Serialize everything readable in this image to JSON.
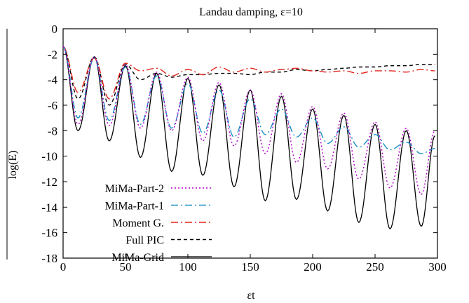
{
  "chart_data": {
    "type": "line",
    "title": "Landau damping, ε=10",
    "xlabel": "εt",
    "ylabel": "log(E)",
    "xlim": [
      0,
      300
    ],
    "ylim": [
      -18,
      0
    ],
    "xticks": [
      0,
      50,
      100,
      150,
      200,
      250,
      300
    ],
    "yticks": [
      0,
      -2,
      -4,
      -6,
      -8,
      -10,
      -12,
      -14,
      -16,
      -18
    ],
    "grid": false,
    "legend": "bottom-left",
    "colors": {
      "mima_part_2": "#b000c8",
      "mima_part_1": "#1a8fc4",
      "moment_g": "#e0241b",
      "full_pic": "#000000",
      "mima_grid": "#000000"
    },
    "series": [
      {
        "name": "MiMa-Part-2",
        "style": "dotted",
        "x": [
          0,
          12,
          25,
          37,
          50,
          62,
          75,
          87,
          100,
          112,
          125,
          137,
          150,
          162,
          175,
          187,
          200,
          212,
          225,
          237,
          250,
          262,
          275,
          287,
          298
        ],
        "values": [
          -1.4,
          -7.5,
          -2.2,
          -7.6,
          -2.8,
          -7.8,
          -3.4,
          -8.0,
          -3.8,
          -8.8,
          -4.2,
          -9.2,
          -4.8,
          -9.8,
          -5.1,
          -10.5,
          -6.1,
          -11.0,
          -6.6,
          -11.8,
          -7.3,
          -12.5,
          -7.8,
          -13.0,
          -8.0
        ]
      },
      {
        "name": "MiMa-Part-1",
        "style": "dash-dot",
        "x": [
          0,
          12,
          25,
          37,
          50,
          62,
          75,
          87,
          100,
          112,
          125,
          137,
          150,
          162,
          175,
          187,
          200,
          212,
          225,
          237,
          250,
          262,
          275,
          287,
          298
        ],
        "values": [
          -1.4,
          -7.0,
          -2.3,
          -7.2,
          -3.0,
          -7.5,
          -3.7,
          -7.8,
          -4.3,
          -8.2,
          -4.8,
          -8.5,
          -5.5,
          -8.3,
          -6.3,
          -8.5,
          -7.0,
          -9.0,
          -7.7,
          -9.3,
          -8.3,
          -9.5,
          -8.9,
          -9.8,
          -9.4
        ]
      },
      {
        "name": "Moment G.",
        "style": "dash-dot",
        "x": [
          0,
          12,
          25,
          37,
          50,
          62,
          75,
          87,
          100,
          112,
          125,
          137,
          150,
          162,
          175,
          187,
          200,
          212,
          225,
          237,
          250,
          262,
          275,
          287,
          298
        ],
        "values": [
          -1.4,
          -5.0,
          -2.3,
          -5.5,
          -2.7,
          -3.3,
          -3.1,
          -3.7,
          -3.2,
          -3.6,
          -3.0,
          -3.4,
          -3.1,
          -3.4,
          -3.2,
          -3.1,
          -3.3,
          -3.4,
          -3.3,
          -3.5,
          -3.3,
          -3.3,
          -3.4,
          -3.2,
          -3.3
        ]
      },
      {
        "name": "Full PIC",
        "style": "dashed",
        "x": [
          0,
          12,
          25,
          37,
          50,
          62,
          75,
          87,
          100,
          112,
          125,
          137,
          150,
          162,
          175,
          187,
          200,
          212,
          225,
          237,
          250,
          262,
          275,
          287,
          298
        ],
        "values": [
          -1.4,
          -5.5,
          -2.2,
          -6.0,
          -2.8,
          -4.0,
          -3.5,
          -3.8,
          -3.6,
          -3.6,
          -3.5,
          -3.5,
          -3.6,
          -3.4,
          -3.4,
          -3.2,
          -3.3,
          -3.2,
          -3.1,
          -3.0,
          -3.0,
          -2.9,
          -2.9,
          -2.8,
          -2.8
        ]
      },
      {
        "name": "MiMa-Grid",
        "style": "solid",
        "x": [
          0,
          12,
          25,
          37,
          50,
          62,
          75,
          87,
          100,
          112,
          125,
          137,
          150,
          162,
          175,
          187,
          200,
          212,
          225,
          237,
          250,
          262,
          275,
          287,
          298
        ],
        "values": [
          -1.4,
          -8.0,
          -2.2,
          -8.8,
          -2.9,
          -10.1,
          -3.5,
          -11.2,
          -3.9,
          -11.5,
          -4.4,
          -12.4,
          -4.8,
          -13.5,
          -5.3,
          -13.4,
          -6.3,
          -14.3,
          -6.8,
          -15.2,
          -7.5,
          -15.7,
          -8.0,
          -15.5,
          -8.4
        ]
      }
    ]
  }
}
